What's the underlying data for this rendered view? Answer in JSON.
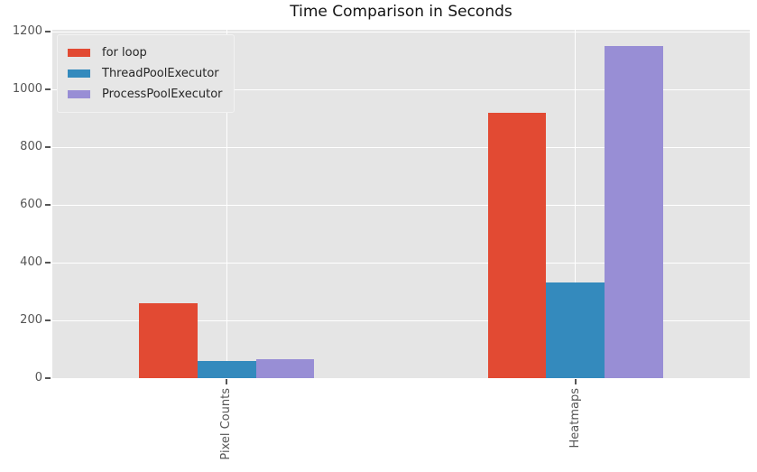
{
  "title": "Time Comparison in Seconds",
  "chart_data": {
    "type": "bar",
    "title": "Time Comparison in Seconds",
    "xlabel": "",
    "ylabel": "",
    "categories": [
      "Pixel Counts",
      "Heatmaps"
    ],
    "series": [
      {
        "name": "for loop",
        "color": "#E24A33",
        "values": [
          260,
          918
        ]
      },
      {
        "name": "ThreadPoolExecutor",
        "color": "#348ABD",
        "values": [
          58,
          332
        ]
      },
      {
        "name": "ProcessPoolExecutor",
        "color": "#988ED5",
        "values": [
          67,
          1152
        ]
      }
    ],
    "yticks": [
      0,
      200,
      400,
      600,
      800,
      1000,
      1200
    ],
    "ylim": [
      0,
      1207
    ],
    "grid": true,
    "legend_position": "upper left",
    "xtick_rotation_degrees": 90,
    "style": {
      "plot_background": "#E5E5E5",
      "grid_color": "#FFFFFF",
      "tick_color": "#555555",
      "title_color": "#141414",
      "legend_background": "#E6E6E6",
      "legend_text_color": "#262626"
    }
  }
}
